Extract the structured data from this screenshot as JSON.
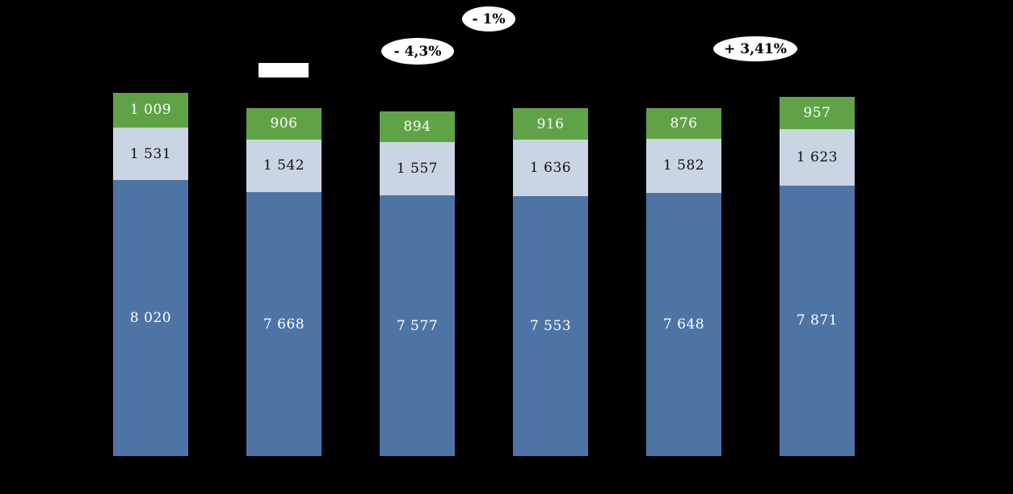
{
  "chart_data": {
    "type": "bar",
    "stacked": true,
    "orientation": "vertical",
    "background": "#000000",
    "grid": false,
    "legend": "none-visible",
    "categories": [
      "",
      "",
      "",
      "",
      "",
      ""
    ],
    "series": [
      {
        "name": "bottom-blue",
        "color": "#4e74a6",
        "label_color": "#ffffff",
        "values": [
          8020,
          7668,
          7577,
          7553,
          7648,
          7871
        ],
        "labels": [
          "8 020",
          "7 668",
          "7 577",
          "7 553",
          "7 648",
          "7 871"
        ]
      },
      {
        "name": "middle-light-blue",
        "color": "#c9d5e3",
        "label_color": "#111111",
        "values": [
          1531,
          1542,
          1557,
          1636,
          1582,
          1623
        ],
        "labels": [
          "1 531",
          "1 542",
          "1 557",
          "1 636",
          "1 582",
          "1 623"
        ]
      },
      {
        "name": "top-green",
        "color": "#5fa346",
        "label_color": "#ffffff",
        "values": [
          1009,
          906,
          894,
          916,
          876,
          957
        ],
        "labels": [
          "1 009",
          "906",
          "894",
          "916",
          "876",
          "957"
        ]
      }
    ],
    "totals": [
      10560,
      10116,
      10028,
      10105,
      10106,
      10451
    ]
  },
  "annotations": [
    {
      "text": "- 1%"
    },
    {
      "text": "- 4,3%"
    },
    {
      "text": "+ 3,41%"
    }
  ]
}
